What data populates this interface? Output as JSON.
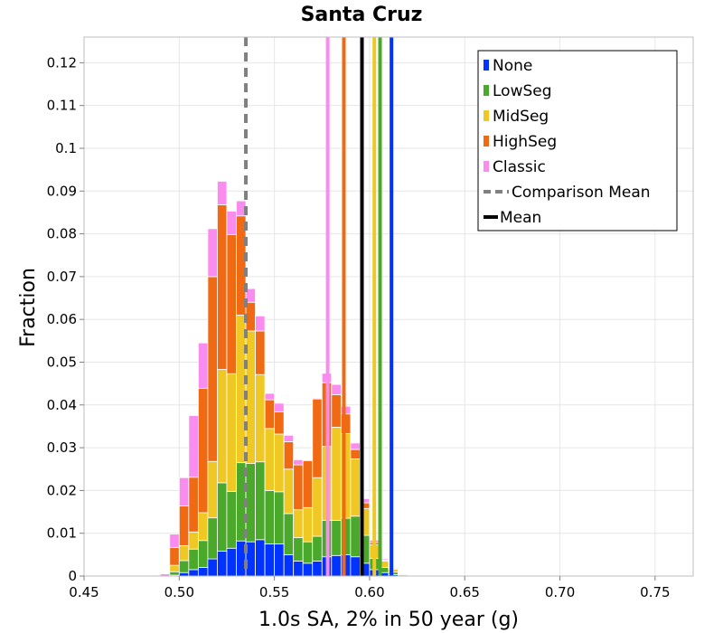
{
  "chart_data": {
    "type": "bar",
    "stacked": true,
    "title": "Santa Cruz",
    "xlabel": "1.0s SA, 2% in 50 year (g)",
    "ylabel": "Fraction",
    "xlim": [
      0.45,
      0.77
    ],
    "ylim": [
      0,
      0.126
    ],
    "x_ticks": [
      {
        "value": 0.45,
        "label": "0.45"
      },
      {
        "value": 0.5,
        "label": "0.50"
      },
      {
        "value": 0.55,
        "label": "0.55"
      },
      {
        "value": 0.6,
        "label": "0.60"
      },
      {
        "value": 0.65,
        "label": "0.65"
      },
      {
        "value": 0.7,
        "label": "0.70"
      },
      {
        "value": 0.75,
        "label": "0.75"
      }
    ],
    "y_ticks": [
      {
        "value": 0,
        "label": "0"
      },
      {
        "value": 0.01,
        "label": "0.01"
      },
      {
        "value": 0.02,
        "label": "0.02"
      },
      {
        "value": 0.03,
        "label": "0.03"
      },
      {
        "value": 0.04,
        "label": "0.04"
      },
      {
        "value": 0.05,
        "label": "0.05"
      },
      {
        "value": 0.06,
        "label": "0.06"
      },
      {
        "value": 0.07,
        "label": "0.07"
      },
      {
        "value": 0.08,
        "label": "0.08"
      },
      {
        "value": 0.09,
        "label": "0.09"
      },
      {
        "value": 0.1,
        "label": "0.1"
      },
      {
        "value": 0.11,
        "label": "0.11"
      },
      {
        "value": 0.12,
        "label": "0.12"
      }
    ],
    "grid": true,
    "legend_position": "top-right",
    "bin_width": 0.005,
    "bin_centers": [
      0.4825,
      0.4875,
      0.4925,
      0.4975,
      0.5025,
      0.5075,
      0.5125,
      0.5175,
      0.5225,
      0.5275,
      0.5325,
      0.5375,
      0.5425,
      0.5475,
      0.5525,
      0.5575,
      0.5625,
      0.5675,
      0.5725,
      0.5775,
      0.5825,
      0.5875,
      0.5925,
      0.5975,
      0.6025,
      0.6075,
      0.6125,
      0.6175,
      0.6225,
      0.6275,
      0.6325,
      0.6375,
      0.6425,
      0.6475,
      0.6525,
      0.6575,
      0.6625,
      0.6675,
      0.6725,
      0.6775,
      0.6825,
      0.6875,
      0.6925,
      0.6975,
      0.7025,
      0.7075,
      0.7125,
      0.7175,
      0.7225,
      0.7275,
      0.7325,
      0.7375,
      0.7425,
      0.7475,
      0.7525,
      0.7575
    ],
    "series": [
      {
        "name": "None",
        "color": "#0033ff",
        "values": [
          0,
          0,
          0,
          0.0002,
          0.0008,
          0.0015,
          0.002,
          0.004,
          0.0058,
          0.0065,
          0.0082,
          0.008,
          0.0085,
          0.0075,
          0.0075,
          0.005,
          0.0035,
          0.003,
          0.0035,
          0.0045,
          0.0048,
          0.005,
          0.0045,
          0.003,
          0.0015,
          0.0008,
          0.0003,
          0.0001,
          0,
          0,
          0,
          0,
          0,
          0,
          0,
          0,
          0,
          0,
          0,
          0,
          0,
          0,
          0,
          0,
          0,
          0,
          0,
          0,
          0,
          0,
          0,
          0,
          0,
          0,
          0,
          0
        ]
      },
      {
        "name": "LowSeg",
        "color": "#4aa82a",
        "values": [
          0,
          0,
          0,
          0.0008,
          0.0028,
          0.0048,
          0.0063,
          0.0096,
          0.016,
          0.0133,
          0.0183,
          0.0183,
          0.0182,
          0.0125,
          0.0122,
          0.0096,
          0.0055,
          0.005,
          0.0058,
          0.0085,
          0.0082,
          0.0085,
          0.0095,
          0.0065,
          0.0026,
          0.0012,
          0.0006,
          0.0002,
          0,
          0,
          0,
          0,
          0,
          0,
          0,
          0,
          0,
          0,
          0,
          0,
          0,
          0,
          0,
          0,
          0,
          0,
          0,
          0,
          0,
          0,
          0,
          0,
          0,
          0,
          0,
          0
        ]
      },
      {
        "name": "MidSeg",
        "color": "#f0c824",
        "values": [
          0,
          0,
          0,
          0.0015,
          0.0035,
          0.004,
          0.0065,
          0.0132,
          0.0265,
          0.0275,
          0.0345,
          0.031,
          0.0204,
          0.0145,
          0.0135,
          0.0104,
          0.0065,
          0.008,
          0.0137,
          0.0173,
          0.0218,
          0.0198,
          0.0134,
          0.0063,
          0.0032,
          0.0015,
          0.0007,
          0.0002,
          0,
          0,
          0,
          0,
          0,
          0,
          0,
          0,
          0,
          0,
          0,
          0,
          0,
          0,
          0,
          0,
          0,
          0,
          0,
          0,
          0,
          0,
          0,
          0,
          0,
          0,
          0,
          0
        ]
      },
      {
        "name": "HighSeg",
        "color": "#f06a14",
        "values": [
          0,
          0,
          0,
          0.0042,
          0.0093,
          0.0128,
          0.0291,
          0.0432,
          0.0385,
          0.0325,
          0.0232,
          0.0067,
          0.0102,
          0.0067,
          0.0052,
          0.0064,
          0.0105,
          0.011,
          0.0184,
          0.0149,
          0.0076,
          0.0046,
          0.0022,
          0.0013,
          0.0005,
          0.0002,
          0.0001,
          0.0001,
          0,
          0,
          0,
          0,
          0,
          0,
          0,
          0,
          0,
          0,
          0,
          0,
          0,
          0,
          0,
          0,
          0,
          0,
          0,
          0,
          0,
          0,
          0,
          0,
          0,
          0,
          0,
          0
        ]
      },
      {
        "name": "Classic",
        "color": "#fa8cf0",
        "values": [
          0.0001,
          0.0002,
          0.0005,
          0.0031,
          0.0066,
          0.0144,
          0.0106,
          0.0112,
          0.0055,
          0.0055,
          0.0035,
          0.0032,
          0.0035,
          0.0015,
          0.002,
          0.0015,
          0.0012,
          0.0001,
          0.0002,
          0.0022,
          0.0024,
          0.0018,
          0.0015,
          0.001,
          0.0006,
          0.0003,
          0.0002,
          0.0001,
          0,
          0,
          0,
          0,
          0,
          0,
          0,
          0,
          0,
          0,
          0,
          0,
          0,
          0,
          0,
          0,
          0,
          0,
          0,
          0,
          0,
          0,
          0,
          0,
          0,
          0,
          0,
          0
        ]
      }
    ],
    "vertical_lines": [
      {
        "name": "None",
        "x": 0.6115,
        "color": "#0033ff",
        "style": "solid"
      },
      {
        "name": "LowSeg",
        "x": 0.6055,
        "color": "#4aa82a",
        "style": "solid"
      },
      {
        "name": "MidSeg",
        "x": 0.6025,
        "color": "#f0c824",
        "style": "solid"
      },
      {
        "name": "HighSeg",
        "x": 0.5865,
        "color": "#f06a14",
        "style": "solid"
      },
      {
        "name": "Classic",
        "x": 0.578,
        "color": "#fa8cf0",
        "style": "solid"
      },
      {
        "name": "Comparison Mean",
        "x": 0.535,
        "color": "#808080",
        "style": "dashed"
      },
      {
        "name": "Mean",
        "x": 0.596,
        "color": "#000000",
        "style": "solid"
      }
    ],
    "legend": [
      {
        "label": "None",
        "color": "#0033ff",
        "kind": "box"
      },
      {
        "label": "LowSeg",
        "color": "#4aa82a",
        "kind": "box"
      },
      {
        "label": "MidSeg",
        "color": "#f0c824",
        "kind": "box"
      },
      {
        "label": "HighSeg",
        "color": "#f06a14",
        "kind": "box"
      },
      {
        "label": "Classic",
        "color": "#fa8cf0",
        "kind": "box"
      },
      {
        "label": "Comparison Mean",
        "color": "#808080",
        "kind": "dashed"
      },
      {
        "label": "Mean",
        "color": "#000000",
        "kind": "line"
      }
    ]
  }
}
